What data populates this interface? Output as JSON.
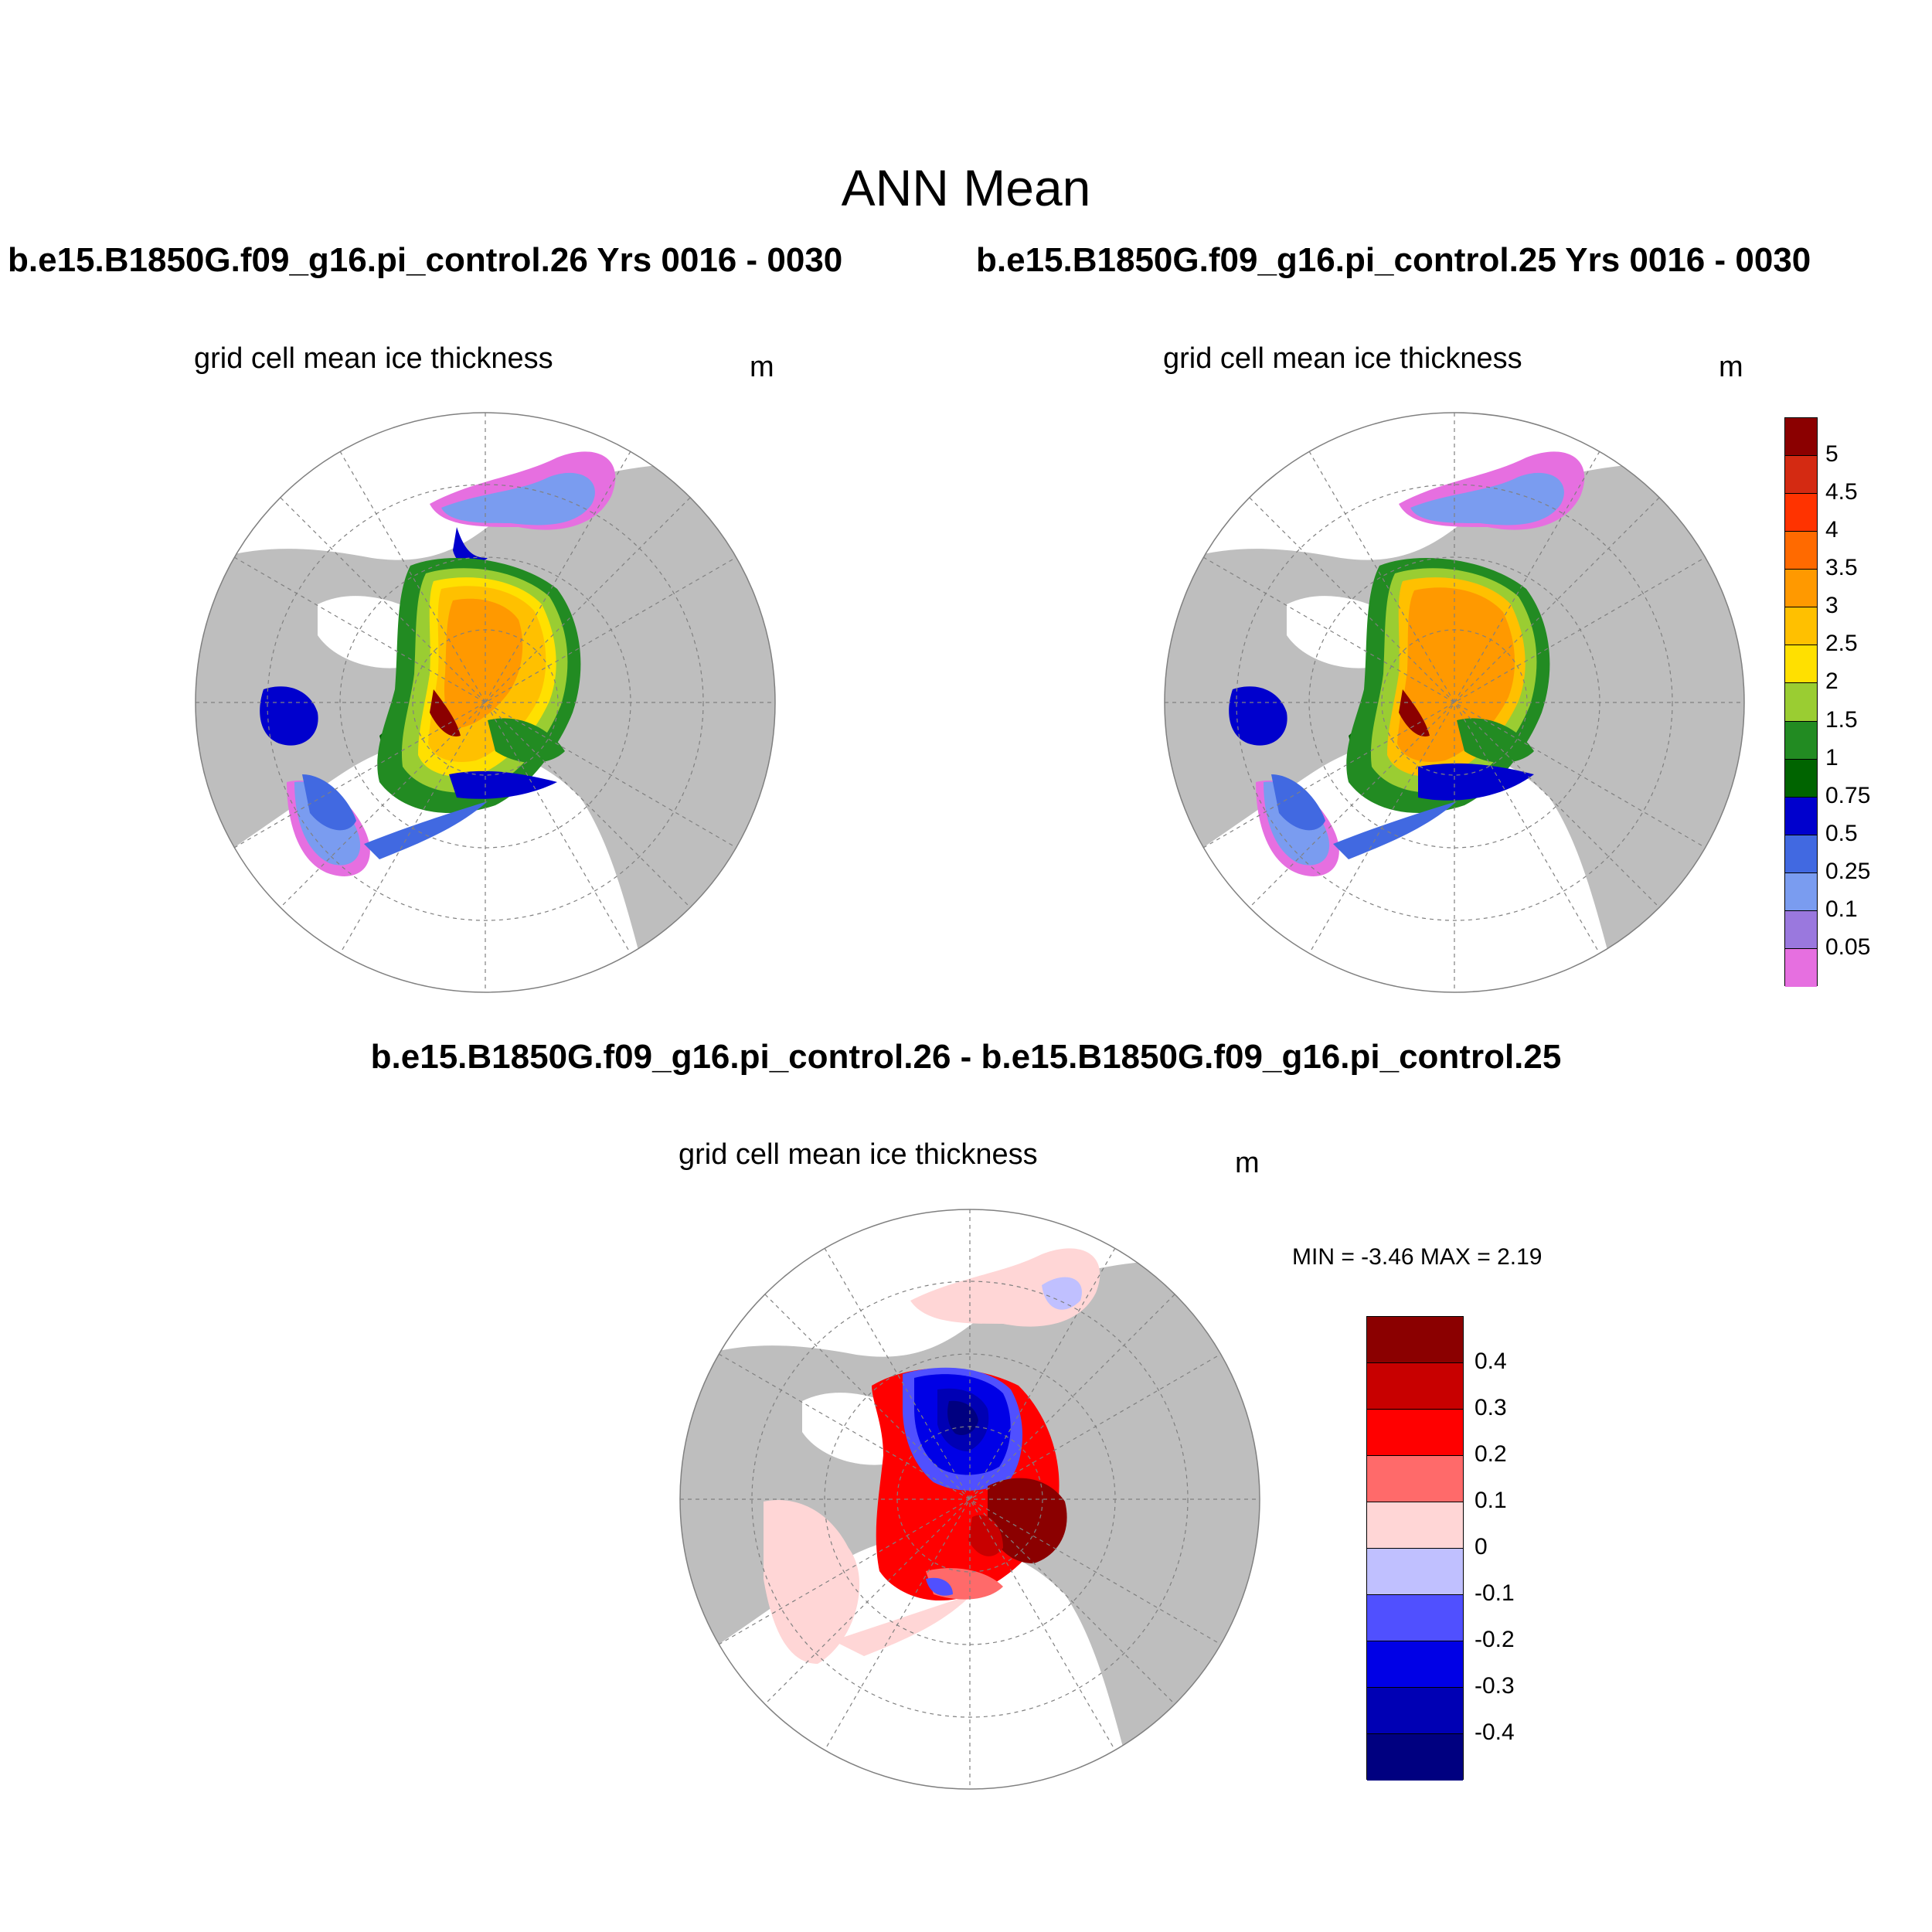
{
  "main_title": "ANN Mean",
  "panels": [
    {
      "run_title": "b.e15.B1850G.f09_g16.pi_control.26  Yrs 0016 - 0030",
      "variable": "grid cell mean ice thickness",
      "units": "m"
    },
    {
      "run_title": "b.e15.B1850G.f09_g16.pi_control.25  Yrs 0016 - 0030",
      "variable": "grid cell mean ice thickness",
      "units": "m"
    }
  ],
  "difference": {
    "title": "b.e15.B1850G.f09_g16.pi_control.26 - b.e15.B1850G.f09_g16.pi_control.25",
    "variable": "grid cell mean ice thickness",
    "units": "m",
    "minmax": "MIN =  -3.46 MAX =   2.19"
  },
  "colors": {
    "land": "#bebebe",
    "ocean": "#ffffff",
    "thickness_scale": [
      "#e66fe0",
      "#9a78de",
      "#7a9cf0",
      "#4169e1",
      "#0000cd",
      "#006400",
      "#228b22",
      "#9acd32",
      "#ffe000",
      "#ffc000",
      "#ff9900",
      "#ff6a00",
      "#ff3300",
      "#d42a12",
      "#8b0000"
    ],
    "diff_scale": [
      "#000080",
      "#0000b4",
      "#0000e6",
      "#5050ff",
      "#c0c0ff",
      "#ffd6d6",
      "#ff6a6a",
      "#ff0000",
      "#c80000",
      "#8b0000"
    ]
  },
  "thickness_colorbar_labels": [
    "5",
    "4.5",
    "4",
    "3.5",
    "3",
    "2.5",
    "2",
    "1.5",
    "1",
    "0.75",
    "0.5",
    "0.25",
    "0.1",
    "0.05"
  ],
  "diff_colorbar_labels": [
    "0.4",
    "0.3",
    "0.2",
    "0.1",
    "0",
    "-0.1",
    "-0.2",
    "-0.3",
    "-0.4"
  ]
}
